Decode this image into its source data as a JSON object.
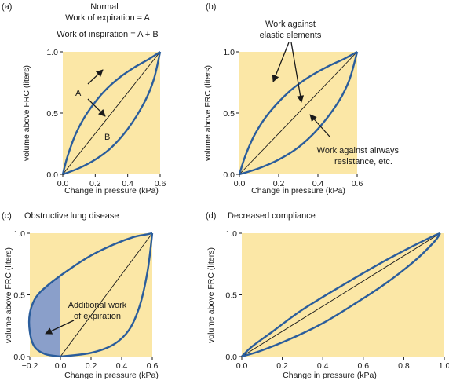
{
  "colors": {
    "plot_bg": "#fbe7a6",
    "curve": "#2a5d9c",
    "diagonal": "#1a1a1a",
    "shaded": "#8a9fca",
    "text": "#1a1a1a"
  },
  "chart_data": [
    {
      "panel": "(a)",
      "type": "line",
      "title": "Normal",
      "annotations": [
        "Work of expiration = A",
        "Work of inspiration = A + B",
        "A",
        "B"
      ],
      "xlabel": "Change in pressure (kPa)",
      "ylabel": "volume above FRC (liters)",
      "xlim": [
        0,
        0.6
      ],
      "ylim": [
        0,
        1
      ],
      "xticks": [
        "0.0",
        "0.2",
        "0.4",
        "0.6"
      ],
      "yticks": [
        "0.0",
        "0.5",
        "1.0"
      ],
      "series": [
        {
          "role": "inspiration",
          "x": [
            0,
            0.03,
            0.08,
            0.15,
            0.25,
            0.35,
            0.45,
            0.53,
            0.6
          ],
          "y": [
            0,
            0.15,
            0.33,
            0.5,
            0.67,
            0.79,
            0.88,
            0.94,
            1
          ]
        },
        {
          "role": "expiration",
          "x": [
            0,
            0.1,
            0.2,
            0.3,
            0.4,
            0.5,
            0.56,
            0.6
          ],
          "y": [
            0,
            0.05,
            0.12,
            0.22,
            0.37,
            0.58,
            0.77,
            1
          ]
        },
        {
          "role": "diagonal",
          "x": [
            0,
            0.6
          ],
          "y": [
            0,
            1
          ]
        }
      ]
    },
    {
      "panel": "(b)",
      "type": "line",
      "title": "",
      "annotations": [
        "Work against",
        "elastic elements",
        "Work against airways",
        "resistance, etc."
      ],
      "xlabel": "Change in pressure (kPa)",
      "ylabel": "volume above FRC (liters)",
      "xlim": [
        0,
        0.6
      ],
      "ylim": [
        0,
        1
      ],
      "xticks": [
        "0.0",
        "0.2",
        "0.4",
        "0.6"
      ],
      "yticks": [
        "0.0",
        "0.5",
        "1.0"
      ],
      "series": [
        {
          "role": "inspiration",
          "x": [
            0,
            0.03,
            0.08,
            0.15,
            0.25,
            0.35,
            0.45,
            0.53,
            0.6
          ],
          "y": [
            0,
            0.15,
            0.33,
            0.5,
            0.67,
            0.79,
            0.88,
            0.94,
            1
          ]
        },
        {
          "role": "expiration",
          "x": [
            0,
            0.1,
            0.2,
            0.3,
            0.4,
            0.5,
            0.56,
            0.6
          ],
          "y": [
            0,
            0.05,
            0.12,
            0.22,
            0.37,
            0.58,
            0.77,
            1
          ]
        },
        {
          "role": "diagonal",
          "x": [
            0,
            0.6
          ],
          "y": [
            0,
            1
          ]
        }
      ]
    },
    {
      "panel": "(c)",
      "type": "line",
      "title": "Obstructive lung disease",
      "annotations": [
        "Additional work",
        "of expiration"
      ],
      "xlabel": "Change in pressure (kPa)",
      "ylabel": "volume above FRC (liters)",
      "xlim": [
        -0.2,
        0.6
      ],
      "ylim": [
        0,
        1
      ],
      "xticks": [
        "−0.2",
        "0.0",
        "0.2",
        "0.4",
        "0.6"
      ],
      "yticks": [
        "0.0",
        "0.5",
        "1.0"
      ],
      "series": [
        {
          "role": "expiration",
          "x": [
            0,
            -0.1,
            -0.17,
            -0.2,
            -0.2,
            -0.16,
            -0.08,
            0.05,
            0.2,
            0.35,
            0.48,
            0.56,
            0.6
          ],
          "y": [
            0,
            0.02,
            0.08,
            0.2,
            0.35,
            0.48,
            0.58,
            0.7,
            0.82,
            0.91,
            0.97,
            0.99,
            1
          ]
        },
        {
          "role": "inspiration",
          "x": [
            0,
            0.2,
            0.35,
            0.45,
            0.52,
            0.57,
            0.6
          ],
          "y": [
            0,
            0.03,
            0.1,
            0.22,
            0.42,
            0.7,
            1
          ]
        },
        {
          "role": "diagonal",
          "x": [
            0,
            0.6
          ],
          "y": [
            0,
            1
          ]
        }
      ]
    },
    {
      "panel": "(d)",
      "type": "line",
      "title": "Decreased compliance",
      "annotations": [],
      "xlabel": "Change in pressure (kPa)",
      "ylabel": "volume above FRC (liters)",
      "xlim": [
        0,
        1
      ],
      "ylim": [
        0,
        1
      ],
      "xticks": [
        "0.0",
        "0.2",
        "0.4",
        "0.6",
        "0.8",
        "1.0"
      ],
      "yticks": [
        "0.0",
        "0.5",
        "1.0"
      ],
      "series": [
        {
          "role": "upper",
          "x": [
            0,
            0.05,
            0.15,
            0.3,
            0.5,
            0.7,
            0.85,
            0.95,
            0.98
          ],
          "y": [
            0,
            0.08,
            0.2,
            0.38,
            0.58,
            0.77,
            0.9,
            0.98,
            1
          ]
        },
        {
          "role": "lower",
          "x": [
            0,
            0.1,
            0.25,
            0.4,
            0.55,
            0.7,
            0.85,
            0.95,
            0.98
          ],
          "y": [
            0,
            0.05,
            0.15,
            0.27,
            0.42,
            0.58,
            0.77,
            0.93,
            1
          ]
        },
        {
          "role": "diagonal",
          "x": [
            0,
            0.98
          ],
          "y": [
            0,
            1
          ]
        }
      ]
    }
  ]
}
